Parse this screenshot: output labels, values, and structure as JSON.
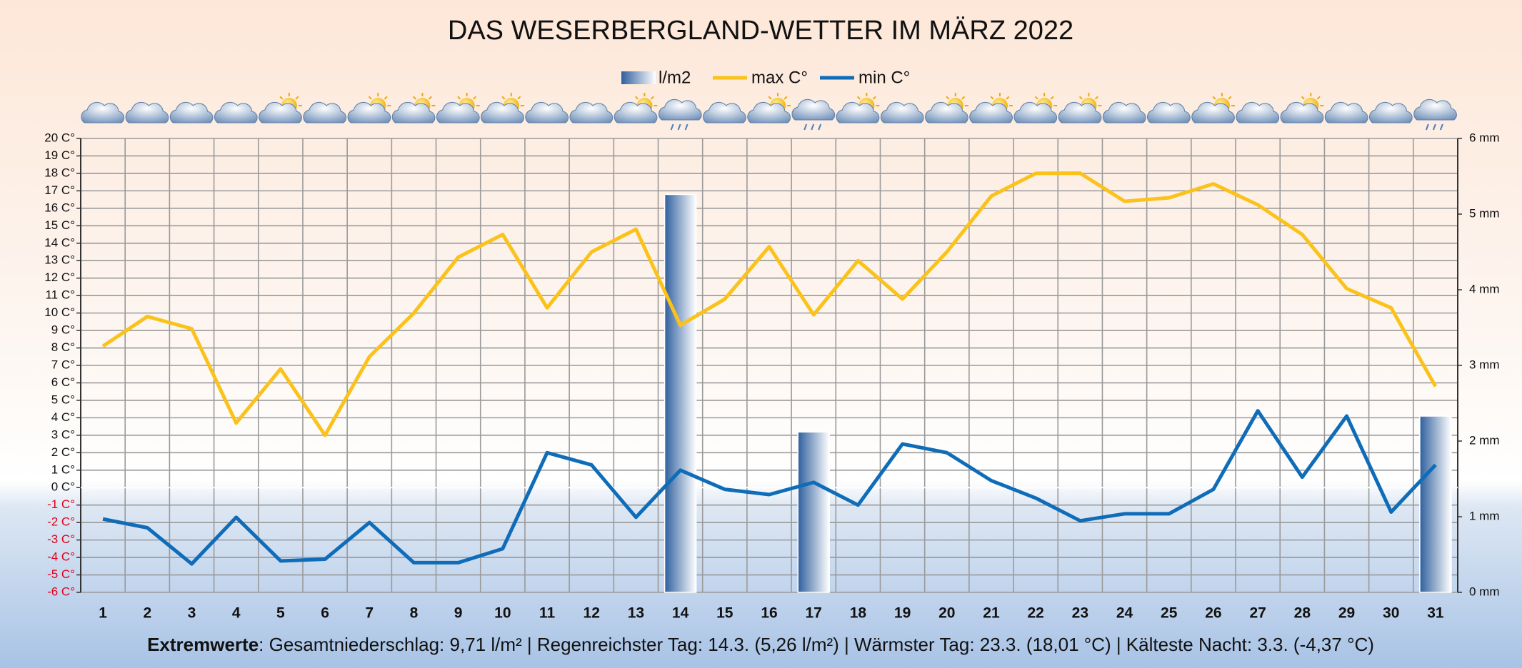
{
  "chart_data": {
    "type": "line",
    "title": "DAS  WESERBERGLAND-WETTER IM MÄRZ 2022",
    "categories": [
      "1",
      "2",
      "3",
      "4",
      "5",
      "6",
      "7",
      "8",
      "9",
      "10",
      "11",
      "12",
      "13",
      "14",
      "15",
      "16",
      "17",
      "18",
      "19",
      "20",
      "21",
      "22",
      "23",
      "24",
      "25",
      "26",
      "27",
      "28",
      "29",
      "30",
      "31"
    ],
    "series": [
      {
        "name": "l/m2",
        "type": "bar",
        "axis": "y2",
        "color": "#2f5f9e",
        "values": [
          0,
          0,
          0,
          0,
          0,
          0,
          0,
          0,
          0,
          0,
          0,
          0,
          0,
          5.26,
          0,
          0,
          2.12,
          0,
          0,
          0,
          0,
          0,
          0,
          0,
          0,
          0,
          0,
          0,
          0,
          0,
          2.33
        ]
      },
      {
        "name": "max C°",
        "color": "#fbc21b",
        "values": [
          8.1,
          9.8,
          9.1,
          3.7,
          6.8,
          3.0,
          7.5,
          10.0,
          13.2,
          14.5,
          10.3,
          13.5,
          14.8,
          9.3,
          10.8,
          13.8,
          9.9,
          13.0,
          10.8,
          13.5,
          16.7,
          18.0,
          18.01,
          16.4,
          16.6,
          17.4,
          16.2,
          14.5,
          11.4,
          10.3,
          5.8
        ]
      },
      {
        "name": "min C°",
        "color": "#0f6cb8",
        "values": [
          -1.8,
          -2.3,
          -4.37,
          -1.7,
          -4.2,
          -4.1,
          -2.0,
          -4.3,
          -4.3,
          -3.5,
          2.0,
          1.3,
          -1.7,
          1.0,
          -0.1,
          -0.4,
          0.3,
          -1.0,
          2.5,
          2.0,
          0.4,
          -0.6,
          -1.9,
          -1.5,
          -1.5,
          -0.1,
          4.4,
          0.6,
          4.1,
          -1.4,
          1.3
        ]
      }
    ],
    "ylim": [
      -6,
      20
    ],
    "yticks": [
      {
        "value": -6,
        "label": "-6 C°"
      },
      {
        "value": -5,
        "label": "-5 C°"
      },
      {
        "value": -4,
        "label": "-4 C°"
      },
      {
        "value": -3,
        "label": "-3 C°"
      },
      {
        "value": -2,
        "label": "-2 C°"
      },
      {
        "value": -1,
        "label": "-1 C°"
      },
      {
        "value": 0,
        "label": "0 C°"
      },
      {
        "value": 1,
        "label": "1 C°"
      },
      {
        "value": 2,
        "label": "2 C°"
      },
      {
        "value": 3,
        "label": "3 C°"
      },
      {
        "value": 4,
        "label": "4 C°"
      },
      {
        "value": 5,
        "label": "5 C°"
      },
      {
        "value": 6,
        "label": "6 C°"
      },
      {
        "value": 7,
        "label": "7 C°"
      },
      {
        "value": 8,
        "label": "8 C°"
      },
      {
        "value": 9,
        "label": "9 C°"
      },
      {
        "value": 10,
        "label": "10 C°"
      },
      {
        "value": 11,
        "label": "11 C°"
      },
      {
        "value": 12,
        "label": "12 C°"
      },
      {
        "value": 13,
        "label": "13 C°"
      },
      {
        "value": 14,
        "label": "14 C°"
      },
      {
        "value": 15,
        "label": "15 C°"
      },
      {
        "value": 16,
        "label": "16 C°"
      },
      {
        "value": 17,
        "label": "17 C°"
      },
      {
        "value": 18,
        "label": "18 C°"
      },
      {
        "value": 19,
        "label": "19 C°"
      },
      {
        "value": 20,
        "label": "20 C°"
      }
    ],
    "y2lim": [
      0,
      6
    ],
    "y2ticks": [
      {
        "value": 0,
        "label": "0 mm"
      },
      {
        "value": 1,
        "label": "1 mm"
      },
      {
        "value": 2,
        "label": "2 mm"
      },
      {
        "value": 3,
        "label": "3 mm"
      },
      {
        "value": 4,
        "label": "4 mm"
      },
      {
        "value": 5,
        "label": "5 mm"
      },
      {
        "value": 6,
        "label": "6 mm"
      }
    ],
    "grid": true,
    "legend": "top",
    "footer": {
      "label": "Extremwerte",
      "text": ": Gesamtniederschlag: 9,71 l/m²  |  Regenreichster Tag: 14.3. (5,26 l/m²)  |  Wärmster Tag: 23.3. (18,01 °C)  |  Kälteste Nacht: 3.3. (-4,37 °C)"
    }
  }
}
